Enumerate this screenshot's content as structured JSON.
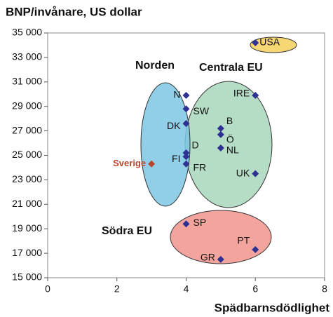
{
  "chart_data": {
    "type": "scatter",
    "title": "BNP/invånare, US dollar",
    "x_label": "Spädbarnsdödlighet",
    "annotations": [
      "Norden",
      "Centrala EU",
      "Södra EU"
    ],
    "xlim": [
      0,
      8
    ],
    "xticks": [
      0,
      2,
      4,
      6,
      8
    ],
    "ylim": [
      15000,
      35000
    ],
    "yticks": [
      {
        "value": 15000,
        "label": "15 000"
      },
      {
        "value": 17000,
        "label": "17 000"
      },
      {
        "value": 19000,
        "label": "19 000"
      },
      {
        "value": 21000,
        "label": "21 000"
      },
      {
        "value": 23000,
        "label": "23 000"
      },
      {
        "value": 25000,
        "label": "25 000"
      },
      {
        "value": 27000,
        "label": "27 000"
      },
      {
        "value": 29000,
        "label": "29 000"
      },
      {
        "value": 31000,
        "label": "31 000"
      },
      {
        "value": 33000,
        "label": "33 000"
      },
      {
        "value": 35000,
        "label": "35 000"
      }
    ],
    "series": [
      {
        "color": "#2e3192",
        "labels": [
          "USA",
          "N",
          "IRE",
          "SW",
          "DK",
          "B",
          "Ö",
          "D",
          "FI",
          "NL",
          "FR",
          "UK",
          "SP",
          "PT",
          "GR"
        ],
        "x": [
          6,
          4,
          6,
          4,
          4,
          5,
          5,
          4,
          4,
          5,
          4,
          6,
          4,
          6,
          5
        ],
        "values": [
          34200,
          29900,
          29900,
          28800,
          27600,
          27200,
          26700,
          25200,
          24900,
          25600,
          24300,
          23500,
          19400,
          17300,
          16500
        ]
      },
      {
        "color": "#b8462a",
        "labels": [
          "Sverige"
        ],
        "x": [
          3
        ],
        "values": [
          24300
        ]
      }
    ]
  }
}
